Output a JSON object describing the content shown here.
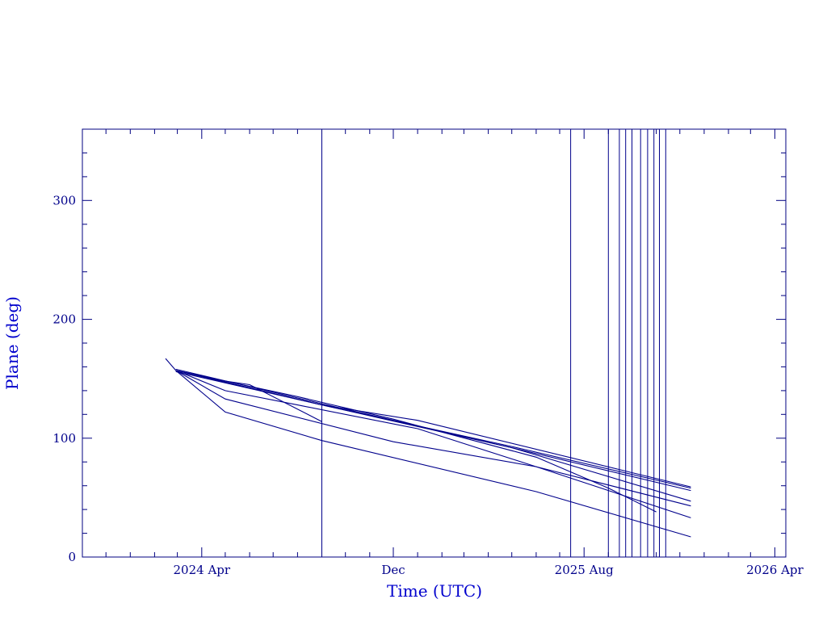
{
  "chart_data": {
    "type": "line",
    "xlabel": "Time (UTC)",
    "ylabel": "Plane (deg)",
    "xlim": [
      "2023-11-01",
      "2026-04-15"
    ],
    "ylim": [
      0,
      360
    ],
    "x_ticks": [
      {
        "date": "2024-04-01",
        "label": "2024 Apr"
      },
      {
        "date": "2024-12-01",
        "label": "Dec"
      },
      {
        "date": "2025-08-01",
        "label": "2025 Aug"
      },
      {
        "date": "2026-04-01",
        "label": "2026 Apr"
      }
    ],
    "y_ticks": [
      0,
      100,
      200,
      300
    ],
    "series": [
      {
        "x": [
          "2024-02-15",
          "2024-02-28",
          "2024-05-01",
          "2024-06-01",
          "2024-09-01"
        ],
        "y": [
          167,
          157,
          148,
          145,
          114
        ]
      },
      {
        "x": [
          "2024-02-28",
          "2024-08-01",
          "2024-12-01",
          "2025-06-01",
          "2025-09-01",
          "2025-11-01"
        ],
        "y": [
          157,
          135,
          116,
          84,
          58,
          38
        ]
      },
      {
        "x": [
          "2024-02-28",
          "2024-09-01",
          "2025-01-01",
          "2025-10-01",
          "2025-12-15"
        ],
        "y": [
          156,
          128,
          115,
          71,
          59
        ]
      },
      {
        "x": [
          "2024-02-28",
          "2024-09-01",
          "2025-05-01",
          "2025-12-15"
        ],
        "y": [
          157,
          128,
          93,
          58
        ]
      },
      {
        "x": [
          "2024-02-28",
          "2024-09-01",
          "2025-05-01",
          "2025-12-15"
        ],
        "y": [
          157,
          128,
          92,
          47
        ]
      },
      {
        "x": [
          "2024-02-28",
          "2024-09-01",
          "2025-05-01",
          "2025-12-15"
        ],
        "y": [
          158,
          129,
          92,
          56
        ]
      },
      {
        "x": [
          "2024-02-28",
          "2024-05-01",
          "2024-08-01",
          "2025-01-01",
          "2025-06-01",
          "2025-12-15"
        ],
        "y": [
          157,
          140,
          128,
          108,
          76,
          43
        ]
      },
      {
        "x": [
          "2024-02-28",
          "2024-05-01",
          "2024-12-01",
          "2025-06-01",
          "2025-12-15"
        ],
        "y": [
          157,
          133,
          97,
          76,
          33
        ]
      },
      {
        "x": [
          "2024-02-28",
          "2024-05-01",
          "2024-09-01",
          "2025-06-01",
          "2025-12-15"
        ],
        "y": [
          157,
          122,
          98,
          55,
          17
        ]
      }
    ],
    "vertical_lines": [
      "2024-09-01",
      "2025-07-15",
      "2025-09-01",
      "2025-09-15",
      "2025-09-23",
      "2025-10-01",
      "2025-10-12",
      "2025-10-21",
      "2025-10-29",
      "2025-11-05",
      "2025-11-13"
    ],
    "grid": false,
    "legend": "none"
  }
}
